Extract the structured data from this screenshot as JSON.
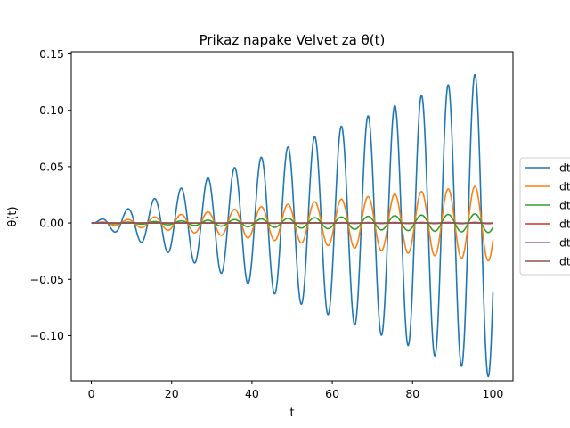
{
  "chart_data": {
    "type": "line",
    "title": "Prikaz napake Velvet za θ(t)",
    "xlabel": "t",
    "ylabel": "θ(t)",
    "xlim": [
      -5,
      105
    ],
    "ylim": [
      -0.14,
      0.152
    ],
    "xticks": [
      0,
      20,
      40,
      60,
      80,
      100
    ],
    "yticks": [
      -0.1,
      -0.05,
      0.0,
      0.05,
      0.1,
      0.15
    ],
    "ytick_labels": [
      "−0.10",
      "−0.05",
      "0.00",
      "0.05",
      "0.10",
      "0.15"
    ],
    "grid": false,
    "legend_position": "right, outside plot (cropped)",
    "x_range": [
      0,
      100
    ],
    "period": 6.65,
    "series": [
      {
        "name": "dt",
        "color": "#1f77b4",
        "envelope_slope": 0.00138,
        "phase": -0.7
      },
      {
        "name": "dt",
        "color": "#ff7f0e",
        "envelope_slope": 0.00034,
        "phase": -0.7
      },
      {
        "name": "dt",
        "color": "#2ca02c",
        "envelope_slope": 8.5e-05,
        "phase": -0.7
      },
      {
        "name": "dt",
        "color": "#d62728",
        "envelope_slope": 5.5e-06,
        "phase": -0.7
      },
      {
        "name": "dt",
        "color": "#9467bd",
        "envelope_slope": 1.5e-06,
        "phase": -0.7
      },
      {
        "name": "dt",
        "color": "#8c564b",
        "envelope_slope": 4e-07,
        "phase": -0.7
      }
    ]
  }
}
